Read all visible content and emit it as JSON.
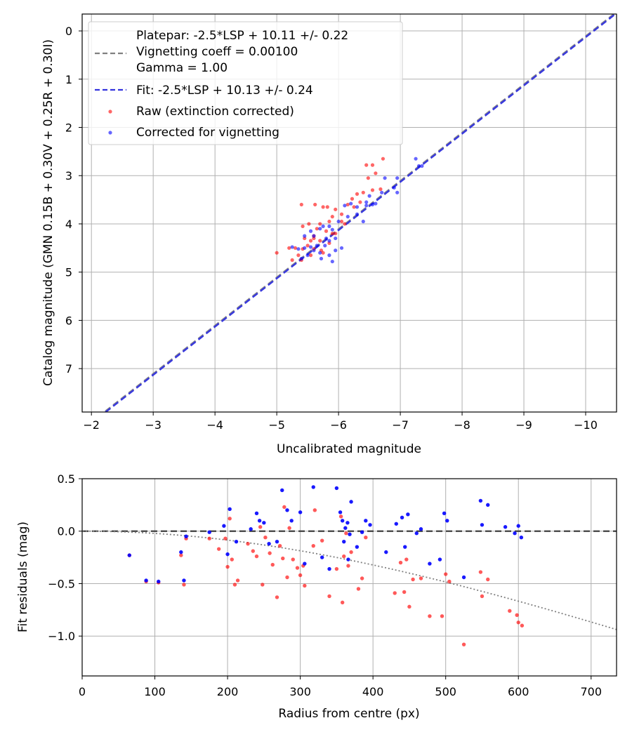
{
  "chart_data": [
    {
      "type": "scatter",
      "xlabel": "Uncalibrated magnitude",
      "ylabel": "Catalog magnitude (GMN 0.15B + 0.30V + 0.25R + 0.30I)",
      "xlim": [
        -1.85,
        -10.5
      ],
      "ylim": [
        7.9,
        -0.35
      ],
      "x_inverted": true,
      "y_inverted": true,
      "grid": true,
      "xticks": [
        -2,
        -3,
        -4,
        -5,
        -6,
        -7,
        -8,
        -9,
        -10
      ],
      "xtick_labels": [
        "−2",
        "−3",
        "−4",
        "−5",
        "−6",
        "−7",
        "−8",
        "−9",
        "−10"
      ],
      "yticks": [
        0,
        1,
        2,
        3,
        4,
        5,
        6,
        7
      ],
      "ytick_labels": [
        "0",
        "1",
        "2",
        "3",
        "4",
        "5",
        "6",
        "7"
      ],
      "legend_location": "upper-left",
      "legend": [
        {
          "label": "Platepar: -2.5*LSP + 10.11 +/- 0.22",
          "kind": "none"
        },
        {
          "label": "Vignetting coeff = 0.00100",
          "kind": "line",
          "color": "#808080",
          "dash": "dashed"
        },
        {
          "label": "Gamma = 1.00",
          "kind": "none"
        },
        {
          "label": "Fit: -2.5*LSP + 10.13 +/- 0.24",
          "kind": "line",
          "color": "#3333dd",
          "dash": "dashed"
        },
        {
          "label": "Raw (extinction corrected)",
          "kind": "marker",
          "color": "#ff0000"
        },
        {
          "label": "Corrected for vignetting",
          "kind": "marker",
          "color": "#0000ff"
        }
      ],
      "lines": [
        {
          "name": "Platepar",
          "slope": 1.0,
          "intercept": 10.11,
          "color": "#808080",
          "style": "dashed"
        },
        {
          "name": "Fit",
          "slope": 1.0,
          "intercept": 10.13,
          "color": "#3333dd",
          "style": "dashed"
        }
      ],
      "series": [
        {
          "name": "Raw (extinction corrected)",
          "color": "#ff0000",
          "points": [
            [
              -6.72,
              2.65
            ],
            [
              -6.55,
              2.78
            ],
            [
              -6.45,
              2.78
            ],
            [
              -6.6,
              2.95
            ],
            [
              -6.48,
              3.05
            ],
            [
              -6.68,
              3.28
            ],
            [
              -6.55,
              3.3
            ],
            [
              -6.4,
              3.35
            ],
            [
              -6.3,
              3.38
            ],
            [
              -6.22,
              3.48
            ],
            [
              -6.35,
              3.55
            ],
            [
              -6.15,
              3.6
            ],
            [
              -6.25,
              3.65
            ],
            [
              -5.4,
              3.6
            ],
            [
              -5.62,
              3.6
            ],
            [
              -5.75,
              3.65
            ],
            [
              -5.82,
              3.65
            ],
            [
              -5.95,
              3.7
            ],
            [
              -6.05,
              3.8
            ],
            [
              -5.85,
              3.95
            ],
            [
              -5.7,
              4.0
            ],
            [
              -5.52,
              4.0
            ],
            [
              -5.42,
              4.05
            ],
            [
              -5.65,
              4.1
            ],
            [
              -5.8,
              4.15
            ],
            [
              -5.9,
              4.2
            ],
            [
              -5.6,
              4.25
            ],
            [
              -5.45,
              4.3
            ],
            [
              -5.55,
              4.35
            ],
            [
              -5.7,
              4.35
            ],
            [
              -5.85,
              4.4
            ],
            [
              -5.5,
              4.45
            ],
            [
              -5.3,
              4.5
            ],
            [
              -5.2,
              4.5
            ],
            [
              -5.42,
              4.52
            ],
            [
              -5.6,
              4.52
            ],
            [
              -5.72,
              4.55
            ],
            [
              -5.75,
              4.6
            ],
            [
              -5.55,
              4.65
            ],
            [
              -5.35,
              4.65
            ],
            [
              -5.25,
              4.75
            ],
            [
              -5.0,
              4.6
            ],
            [
              -5.4,
              4.75
            ],
            [
              -5.6,
              4.3
            ],
            [
              -5.95,
              4.2
            ],
            [
              -6.1,
              4.0
            ],
            [
              -5.9,
              3.85
            ],
            [
              -6.05,
              3.95
            ]
          ]
        },
        {
          "name": "Corrected for vignetting",
          "color": "#0000ff",
          "points": [
            [
              -7.25,
              2.65
            ],
            [
              -7.35,
              2.8
            ],
            [
              -7.3,
              2.8
            ],
            [
              -6.95,
              3.05
            ],
            [
              -6.75,
              3.05
            ],
            [
              -6.9,
              3.25
            ],
            [
              -6.95,
              3.35
            ],
            [
              -6.7,
              3.35
            ],
            [
              -6.5,
              3.42
            ],
            [
              -6.45,
              3.55
            ],
            [
              -6.6,
              3.58
            ],
            [
              -6.55,
              3.6
            ],
            [
              -6.45,
              3.62
            ],
            [
              -6.3,
              3.65
            ],
            [
              -6.2,
              3.58
            ],
            [
              -6.1,
              3.62
            ],
            [
              -6.15,
              3.85
            ],
            [
              -6.0,
              3.95
            ],
            [
              -6.4,
              3.95
            ],
            [
              -6.3,
              3.8
            ],
            [
              -5.85,
              4.05
            ],
            [
              -5.75,
              4.05
            ],
            [
              -5.7,
              4.1
            ],
            [
              -5.9,
              4.12
            ],
            [
              -5.55,
              4.15
            ],
            [
              -5.6,
              4.25
            ],
            [
              -5.45,
              4.25
            ],
            [
              -5.8,
              4.3
            ],
            [
              -5.85,
              4.35
            ],
            [
              -5.95,
              4.3
            ],
            [
              -5.65,
              4.45
            ],
            [
              -5.55,
              4.48
            ],
            [
              -5.45,
              4.5
            ],
            [
              -5.35,
              4.52
            ],
            [
              -5.25,
              4.48
            ],
            [
              -5.6,
              4.55
            ],
            [
              -5.7,
              4.6
            ],
            [
              -5.5,
              4.65
            ],
            [
              -5.85,
              4.65
            ],
            [
              -5.4,
              4.72
            ],
            [
              -5.72,
              4.72
            ],
            [
              -5.9,
              4.78
            ],
            [
              -6.05,
              4.5
            ],
            [
              -5.95,
              4.55
            ],
            [
              -5.78,
              4.45
            ]
          ]
        }
      ]
    },
    {
      "type": "scatter",
      "xlabel": "Radius from centre (px)",
      "ylabel": "Fit residuals (mag)",
      "xlim": [
        0,
        735
      ],
      "ylim": [
        -1.38,
        0.5
      ],
      "grid": true,
      "xticks": [
        0,
        100,
        200,
        300,
        400,
        500,
        600,
        700
      ],
      "xtick_labels": [
        "0",
        "100",
        "200",
        "300",
        "400",
        "500",
        "600",
        "700"
      ],
      "yticks": [
        0.5,
        0.0,
        -0.5,
        -1.0
      ],
      "ytick_labels": [
        "0.5",
        "0.0",
        "−0.5",
        "−1.0"
      ],
      "zero_line": {
        "y": 0.0,
        "color": "#404040",
        "style": "dashed"
      },
      "vignetting_curve": {
        "coeff": 0.001,
        "color": "#808080",
        "style": "dotted"
      },
      "series": [
        {
          "name": "Raw (extinction corrected)",
          "color": "#ff0000",
          "points": [
            [
              65,
              -0.23
            ],
            [
              88,
              -0.48
            ],
            [
              105,
              -0.49
            ],
            [
              136,
              -0.23
            ],
            [
              140,
              -0.51
            ],
            [
              143,
              -0.07
            ],
            [
              175,
              -0.07
            ],
            [
              188,
              -0.17
            ],
            [
              197,
              -0.07
            ],
            [
              200,
              -0.34
            ],
            [
              203,
              0.12
            ],
            [
              206,
              -0.27
            ],
            [
              210,
              -0.51
            ],
            [
              214,
              -0.47
            ],
            [
              228,
              -0.12
            ],
            [
              235,
              -0.19
            ],
            [
              240,
              -0.24
            ],
            [
              245,
              0.04
            ],
            [
              248,
              -0.51
            ],
            [
              252,
              -0.06
            ],
            [
              258,
              -0.21
            ],
            [
              262,
              -0.32
            ],
            [
              268,
              -0.63
            ],
            [
              272,
              -0.14
            ],
            [
              276,
              -0.26
            ],
            [
              278,
              0.23
            ],
            [
              282,
              -0.44
            ],
            [
              285,
              0.03
            ],
            [
              290,
              -0.27
            ],
            [
              296,
              -0.35
            ],
            [
              300,
              -0.42
            ],
            [
              304,
              -0.33
            ],
            [
              306,
              -0.52
            ],
            [
              318,
              -0.14
            ],
            [
              320,
              0.2
            ],
            [
              330,
              -0.09
            ],
            [
              340,
              -0.62
            ],
            [
              350,
              -0.36
            ],
            [
              356,
              0.14
            ],
            [
              358,
              -0.68
            ],
            [
              360,
              -0.24
            ],
            [
              363,
              -0.02
            ],
            [
              366,
              -0.33
            ],
            [
              370,
              -0.2
            ],
            [
              380,
              -0.55
            ],
            [
              385,
              -0.45
            ],
            [
              390,
              -0.06
            ],
            [
              430,
              -0.59
            ],
            [
              438,
              -0.3
            ],
            [
              443,
              -0.58
            ],
            [
              446,
              -0.27
            ],
            [
              450,
              -0.72
            ],
            [
              455,
              -0.46
            ],
            [
              466,
              -0.45
            ],
            [
              478,
              -0.81
            ],
            [
              495,
              -0.81
            ],
            [
              500,
              -0.41
            ],
            [
              505,
              -0.48
            ],
            [
              525,
              -1.08
            ],
            [
              548,
              -0.39
            ],
            [
              550,
              -0.62
            ],
            [
              558,
              -0.46
            ],
            [
              588,
              -0.76
            ],
            [
              598,
              -0.8
            ],
            [
              600,
              -0.87
            ],
            [
              605,
              -0.9
            ]
          ]
        },
        {
          "name": "Corrected for vignetting",
          "color": "#0000ff",
          "points": [
            [
              65,
              -0.23
            ],
            [
              88,
              -0.47
            ],
            [
              105,
              -0.48
            ],
            [
              136,
              -0.2
            ],
            [
              140,
              -0.47
            ],
            [
              143,
              -0.05
            ],
            [
              175,
              -0.01
            ],
            [
              195,
              0.05
            ],
            [
              200,
              -0.22
            ],
            [
              203,
              0.21
            ],
            [
              212,
              -0.1
            ],
            [
              232,
              0.02
            ],
            [
              240,
              0.17
            ],
            [
              244,
              0.1
            ],
            [
              250,
              0.08
            ],
            [
              257,
              -0.12
            ],
            [
              268,
              -0.1
            ],
            [
              275,
              0.39
            ],
            [
              282,
              0.2
            ],
            [
              288,
              0.1
            ],
            [
              300,
              0.18
            ],
            [
              306,
              -0.31
            ],
            [
              318,
              0.42
            ],
            [
              330,
              -0.25
            ],
            [
              340,
              -0.36
            ],
            [
              350,
              0.41
            ],
            [
              355,
              0.18
            ],
            [
              358,
              0.1
            ],
            [
              360,
              -0.1
            ],
            [
              362,
              0.03
            ],
            [
              365,
              0.08
            ],
            [
              366,
              -0.27
            ],
            [
              368,
              -0.03
            ],
            [
              370,
              0.28
            ],
            [
              378,
              -0.15
            ],
            [
              385,
              -0.01
            ],
            [
              390,
              0.1
            ],
            [
              396,
              0.06
            ],
            [
              418,
              -0.2
            ],
            [
              432,
              0.07
            ],
            [
              440,
              0.13
            ],
            [
              444,
              -0.15
            ],
            [
              448,
              0.16
            ],
            [
              460,
              -0.02
            ],
            [
              466,
              0.02
            ],
            [
              478,
              -0.31
            ],
            [
              492,
              -0.27
            ],
            [
              498,
              0.17
            ],
            [
              502,
              0.1
            ],
            [
              525,
              -0.44
            ],
            [
              548,
              0.29
            ],
            [
              550,
              0.06
            ],
            [
              558,
              0.25
            ],
            [
              582,
              0.04
            ],
            [
              595,
              -0.02
            ],
            [
              600,
              0.05
            ],
            [
              604,
              -0.06
            ]
          ]
        }
      ]
    }
  ]
}
